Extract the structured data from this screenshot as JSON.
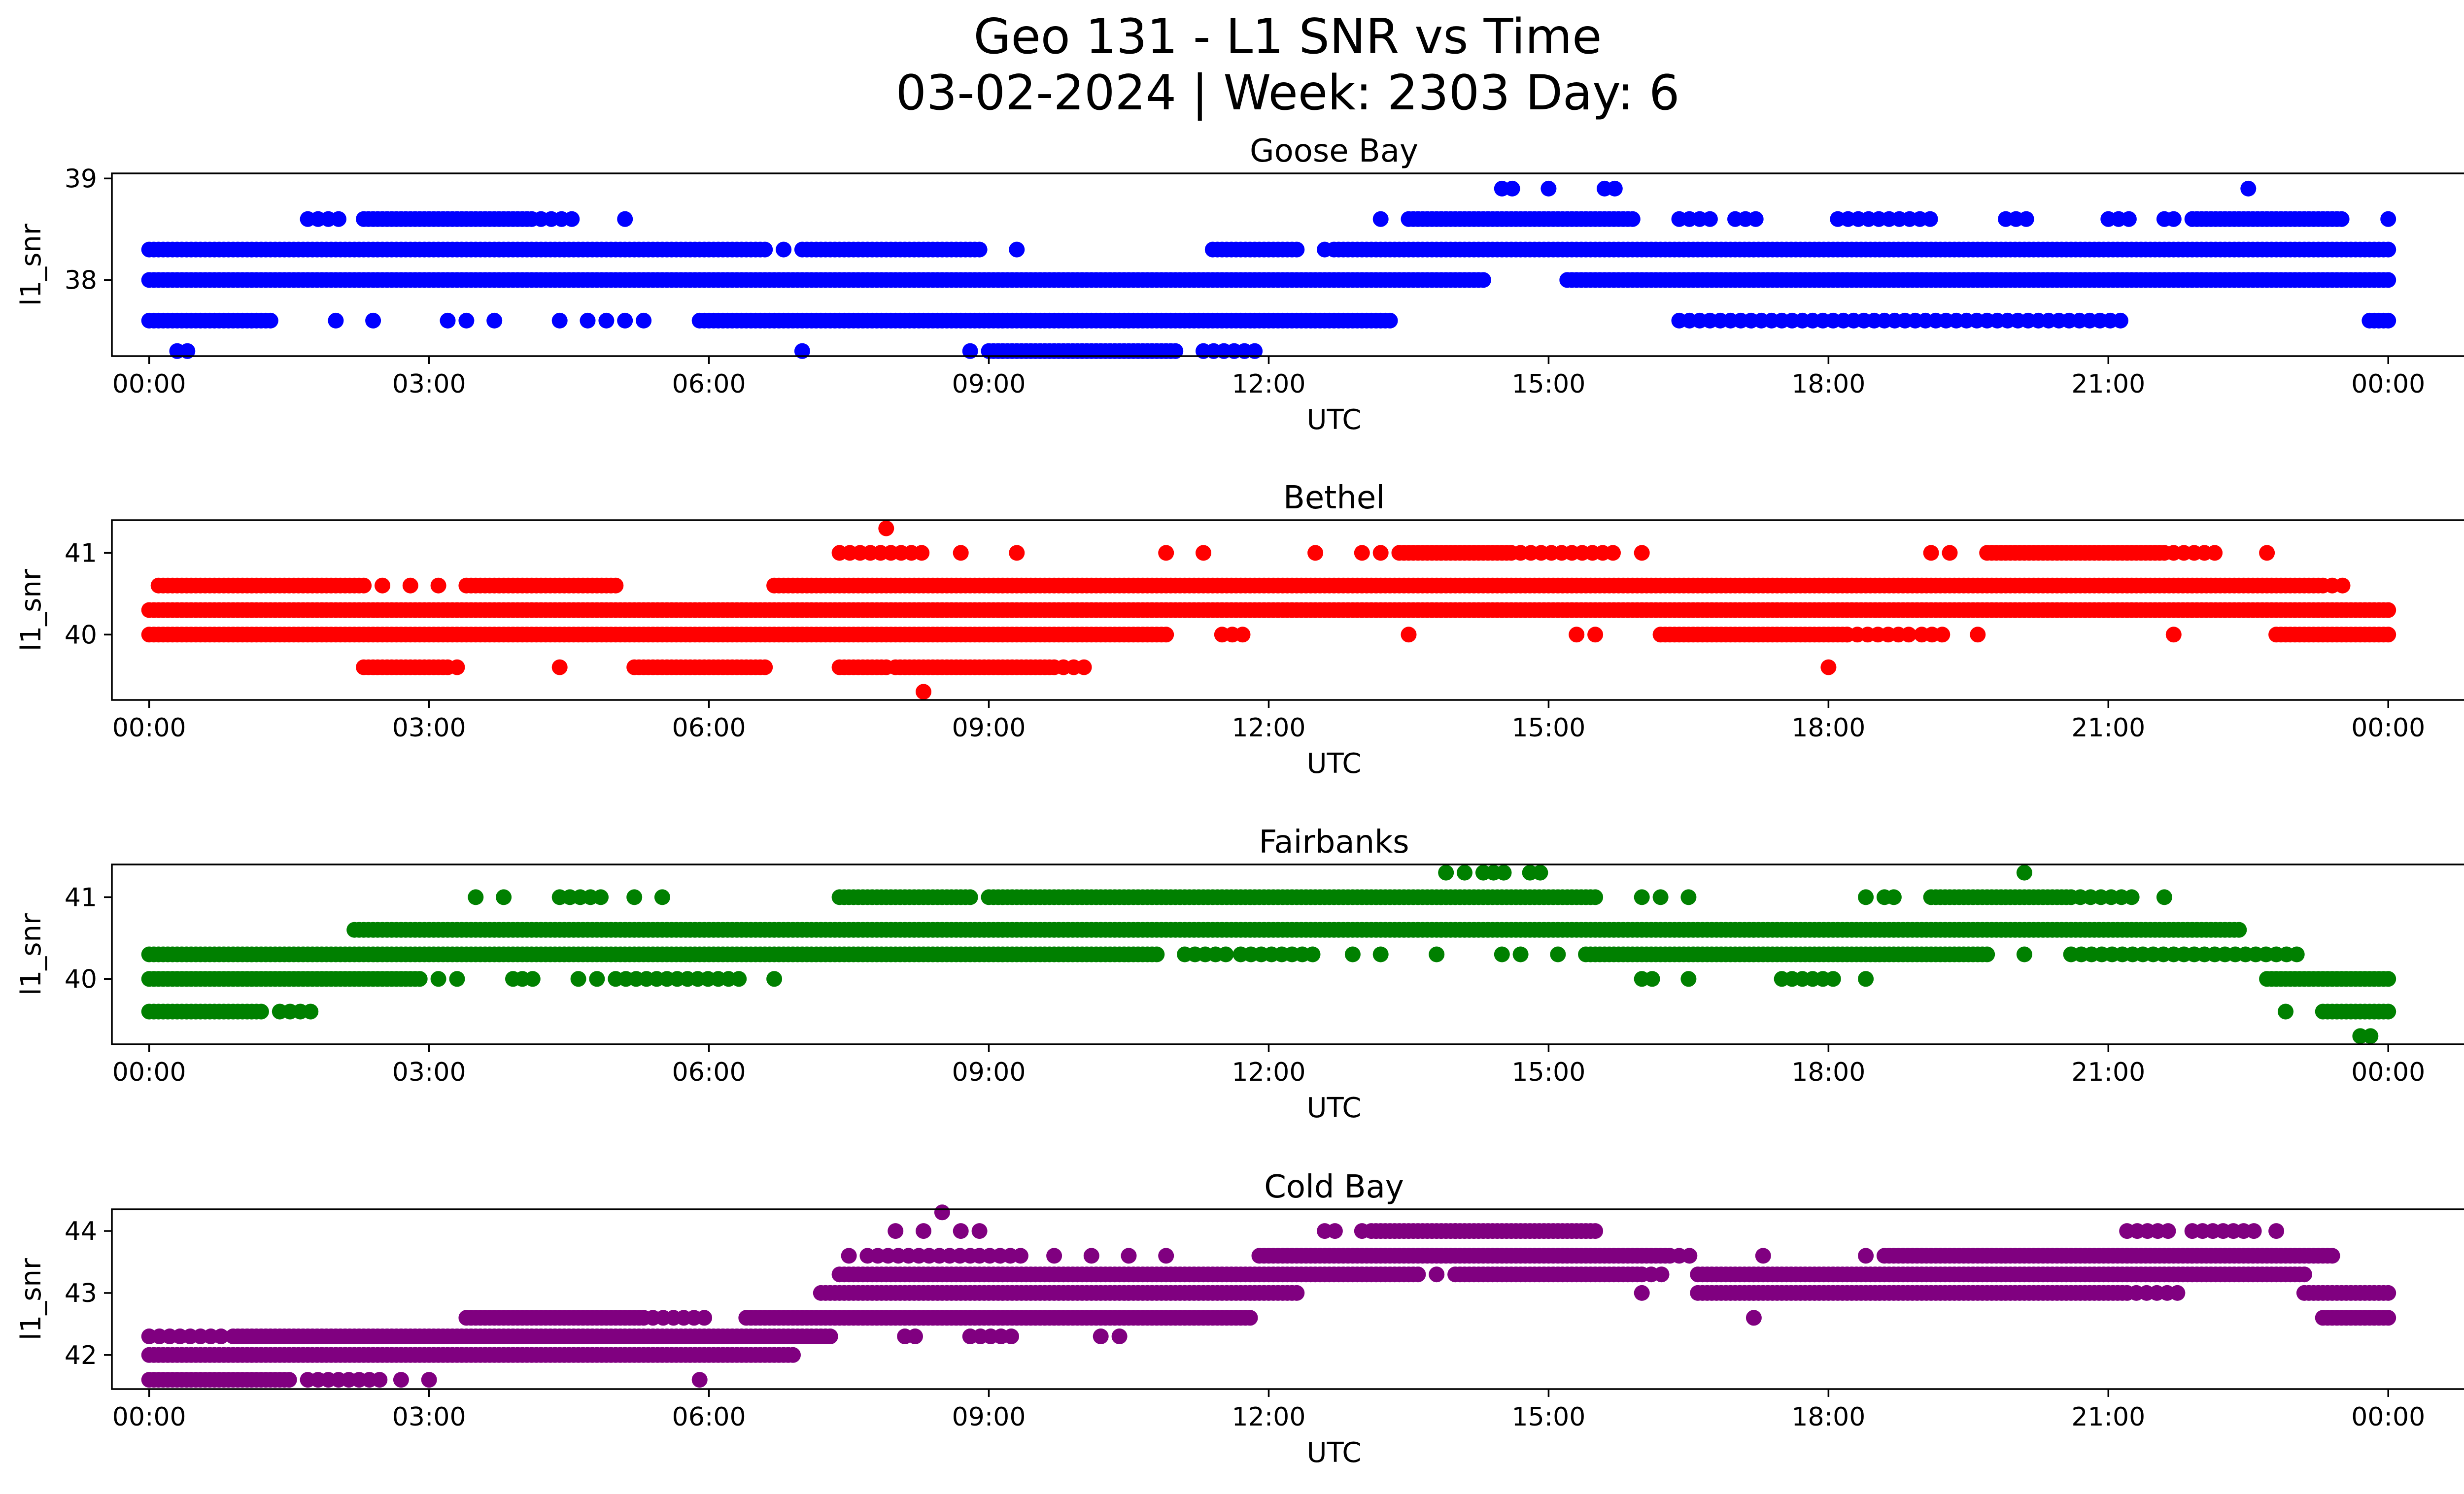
{
  "figure": {
    "title_line1": "Geo 131 - L1 SNR vs Time",
    "title_line2": "03-02-2024 | Week: 2303 Day: 6"
  },
  "chart_data": [
    {
      "type": "scatter",
      "title": "Goose Bay",
      "xlabel": "UTC",
      "ylabel": "l1_snr",
      "color": "#0000ff",
      "xlim_hours": [
        -0.4,
        25.8
      ],
      "ylim": [
        37.25,
        39.05
      ],
      "x_ticks": [
        "00:00",
        "03:00",
        "06:00",
        "09:00",
        "12:00",
        "15:00",
        "18:00",
        "21:00",
        "00:00"
      ],
      "y_ticks": [
        38,
        39
      ],
      "series": [
        {
          "y": 37.3,
          "segments": [
            [
              0.3,
              0.5,
              "sparse"
            ],
            [
              7.0,
              7.1,
              "sparse"
            ],
            [
              8.8,
              8.9,
              "sparse"
            ],
            [
              9.0,
              11.0,
              "dense"
            ],
            [
              11.3,
              11.9,
              "sparse"
            ]
          ],
          "points": []
        },
        {
          "y": 37.6,
          "segments": [
            [
              0.0,
              1.3,
              "dense"
            ],
            [
              5.9,
              13.3,
              "dense"
            ],
            [
              16.4,
              21.2,
              "sparse"
            ],
            [
              23.8,
              24.0,
              "dense"
            ]
          ],
          "points": [
            2.0,
            2.4,
            3.2,
            3.4,
            3.7,
            4.4,
            4.7,
            4.9,
            5.1,
            5.3
          ]
        },
        {
          "y": 38.0,
          "segments": [
            [
              0.0,
              14.3,
              "dense"
            ],
            [
              15.2,
              24.0,
              "dense"
            ]
          ],
          "points": []
        },
        {
          "y": 38.3,
          "segments": [
            [
              0.0,
              6.6,
              "dense"
            ],
            [
              7.0,
              8.9,
              "dense"
            ],
            [
              11.4,
              12.3,
              "dense"
            ],
            [
              12.7,
              24.0,
              "dense"
            ]
          ],
          "points": [
            6.8,
            9.3,
            12.6
          ]
        },
        {
          "y": 38.6,
          "segments": [
            [
              1.7,
              2.1,
              "sparse"
            ],
            [
              2.3,
              4.1,
              "dense"
            ],
            [
              4.2,
              4.6,
              "sparse"
            ],
            [
              13.5,
              15.9,
              "dense"
            ],
            [
              16.4,
              16.8,
              "sparse"
            ],
            [
              17.0,
              17.3,
              "sparse"
            ],
            [
              18.1,
              19.1,
              "sparse"
            ],
            [
              19.9,
              20.2,
              "sparse"
            ],
            [
              21.0,
              21.3,
              "sparse"
            ],
            [
              21.9,
              23.5,
              "dense"
            ]
          ],
          "points": [
            5.1,
            13.2,
            21.6,
            21.7,
            24.0
          ]
        },
        {
          "y": 38.9,
          "segments": [
            [
              14.5,
              14.7,
              "sparse"
            ],
            [
              15.6,
              15.8,
              "sparse"
            ]
          ],
          "points": [
            15.0,
            22.5
          ]
        }
      ]
    },
    {
      "type": "scatter",
      "title": "Bethel",
      "xlabel": "UTC",
      "ylabel": "l1_snr",
      "color": "#ff0000",
      "xlim_hours": [
        -0.4,
        25.8
      ],
      "ylim": [
        39.2,
        41.4
      ],
      "x_ticks": [
        "00:00",
        "03:00",
        "06:00",
        "09:00",
        "12:00",
        "15:00",
        "18:00",
        "21:00",
        "00:00"
      ],
      "y_ticks": [
        40,
        41
      ],
      "series": [
        {
          "y": 39.3,
          "segments": [],
          "points": [
            8.3
          ]
        },
        {
          "y": 39.6,
          "segments": [
            [
              2.3,
              3.2,
              "dense"
            ],
            [
              5.2,
              6.6,
              "dense"
            ],
            [
              7.4,
              7.9,
              "dense"
            ],
            [
              8.0,
              9.7,
              "dense"
            ],
            [
              9.8,
              10.1,
              "sparse"
            ]
          ],
          "points": [
            3.3,
            4.4,
            18.0
          ]
        },
        {
          "y": 40.0,
          "segments": [
            [
              0.0,
              10.9,
              "dense"
            ],
            [
              11.5,
              11.8,
              "sparse"
            ],
            [
              16.2,
              18.2,
              "dense"
            ],
            [
              18.2,
              18.9,
              "sparse"
            ],
            [
              19.0,
              19.3,
              "sparse"
            ],
            [
              22.8,
              24.0,
              "dense"
            ]
          ],
          "points": [
            13.5,
            15.3,
            15.5,
            19.6,
            21.7
          ]
        },
        {
          "y": 40.3,
          "segments": [
            [
              0.0,
              24.0,
              "dense"
            ]
          ],
          "points": []
        },
        {
          "y": 40.6,
          "segments": [
            [
              0.1,
              2.3,
              "dense"
            ],
            [
              3.4,
              5.0,
              "dense"
            ],
            [
              6.7,
              23.3,
              "dense"
            ],
            [
              23.4,
              23.6,
              "sparse"
            ]
          ],
          "points": [
            2.5,
            2.8,
            3.1
          ]
        },
        {
          "y": 41.0,
          "segments": [
            [
              7.4,
              8.3,
              "sparse"
            ],
            [
              13.4,
              14.6,
              "dense"
            ],
            [
              14.7,
              15.7,
              "sparse"
            ],
            [
              19.7,
              21.6,
              "dense"
            ],
            [
              21.7,
              22.2,
              "sparse"
            ]
          ],
          "points": [
            8.7,
            9.3,
            10.9,
            11.3,
            12.5,
            13.0,
            13.2,
            16.0,
            19.1,
            19.3,
            22.7
          ]
        },
        {
          "y": 41.3,
          "segments": [],
          "points": [
            7.9
          ]
        }
      ]
    },
    {
      "type": "scatter",
      "title": "Fairbanks",
      "xlabel": "UTC",
      "ylabel": "l1_snr",
      "color": "#008000",
      "xlim_hours": [
        -0.4,
        25.8
      ],
      "ylim": [
        39.2,
        41.4
      ],
      "x_ticks": [
        "00:00",
        "03:00",
        "06:00",
        "09:00",
        "12:00",
        "15:00",
        "18:00",
        "21:00",
        "00:00"
      ],
      "y_ticks": [
        40,
        41
      ],
      "series": [
        {
          "y": 39.3,
          "segments": [
            [
              23.7,
              23.9,
              "sparse"
            ]
          ],
          "points": []
        },
        {
          "y": 39.6,
          "segments": [
            [
              0.0,
              1.2,
              "dense"
            ],
            [
              1.4,
              1.8,
              "sparse"
            ],
            [
              23.3,
              24.0,
              "dense"
            ]
          ],
          "points": [
            22.9
          ]
        },
        {
          "y": 40.0,
          "segments": [
            [
              0.0,
              2.9,
              "dense"
            ],
            [
              4.0,
              4.2,
              "sparse"
            ],
            [
              5.0,
              6.4,
              "sparse"
            ],
            [
              16.0,
              16.2,
              "sparse"
            ],
            [
              17.5,
              18.1,
              "sparse"
            ],
            [
              22.7,
              24.0,
              "dense"
            ]
          ],
          "points": [
            3.1,
            3.3,
            3.9,
            4.6,
            4.8,
            6.7,
            16.5,
            18.4
          ]
        },
        {
          "y": 40.3,
          "segments": [
            [
              0.0,
              10.8,
              "dense"
            ],
            [
              11.1,
              11.6,
              "sparse"
            ],
            [
              11.7,
              12.5,
              "sparse"
            ],
            [
              15.4,
              19.7,
              "dense"
            ],
            [
              20.6,
              23.1,
              "sparse"
            ]
          ],
          "points": [
            12.9,
            13.2,
            13.8,
            14.5,
            14.7,
            15.1,
            20.1
          ]
        },
        {
          "y": 40.6,
          "segments": [
            [
              2.2,
              22.4,
              "dense"
            ]
          ],
          "points": []
        },
        {
          "y": 41.0,
          "segments": [
            [
              4.4,
              4.9,
              "sparse"
            ],
            [
              7.4,
              8.8,
              "dense"
            ],
            [
              9.0,
              15.5,
              "dense"
            ],
            [
              19.1,
              20.6,
              "dense"
            ],
            [
              20.7,
              21.3,
              "sparse"
            ]
          ],
          "points": [
            3.5,
            3.8,
            5.2,
            5.5,
            16.0,
            16.2,
            16.5,
            18.4,
            18.6,
            18.7,
            21.6
          ]
        },
        {
          "y": 41.3,
          "segments": [
            [
              14.3,
              14.6,
              "sparse"
            ],
            [
              14.8,
              15.0,
              "sparse"
            ]
          ],
          "points": [
            13.9,
            14.1,
            20.1
          ]
        }
      ]
    },
    {
      "type": "scatter",
      "title": "Cold Bay",
      "xlabel": "UTC",
      "ylabel": "l1_snr",
      "color": "#800080",
      "xlim_hours": [
        -0.4,
        25.8
      ],
      "ylim": [
        41.45,
        44.35
      ],
      "x_ticks": [
        "00:00",
        "03:00",
        "06:00",
        "09:00",
        "12:00",
        "15:00",
        "18:00",
        "21:00",
        "00:00"
      ],
      "y_ticks": [
        42,
        43,
        44
      ],
      "series": [
        {
          "y": 41.6,
          "segments": [
            [
              0.0,
              1.5,
              "dense"
            ],
            [
              1.7,
              2.5,
              "sparse"
            ]
          ],
          "points": [
            2.7,
            3.0,
            5.9
          ]
        },
        {
          "y": 42.0,
          "segments": [
            [
              0.0,
              6.9,
              "dense"
            ]
          ],
          "points": []
        },
        {
          "y": 42.3,
          "segments": [
            [
              0.0,
              0.8,
              "sparse"
            ],
            [
              0.9,
              7.3,
              "dense"
            ],
            [
              8.1,
              8.3,
              "sparse"
            ],
            [
              8.8,
              9.3,
              "sparse"
            ]
          ],
          "points": [
            10.2,
            10.4
          ]
        },
        {
          "y": 42.6,
          "segments": [
            [
              3.4,
              5.3,
              "dense"
            ],
            [
              5.4,
              6.0,
              "sparse"
            ],
            [
              6.4,
              11.8,
              "dense"
            ],
            [
              17.2,
              17.3,
              "sparse"
            ],
            [
              23.3,
              24.0,
              "dense"
            ]
          ],
          "points": []
        },
        {
          "y": 43.0,
          "segments": [
            [
              7.2,
              12.3,
              "dense"
            ],
            [
              16.6,
              21.2,
              "dense"
            ],
            [
              21.3,
              21.8,
              "sparse"
            ],
            [
              23.1,
              24.0,
              "dense"
            ]
          ],
          "points": [
            16.0
          ]
        },
        {
          "y": 43.3,
          "segments": [
            [
              7.4,
              13.6,
              "dense"
            ],
            [
              14.0,
              16.0,
              "dense"
            ],
            [
              16.1,
              16.3,
              "sparse"
            ],
            [
              16.6,
              23.1,
              "dense"
            ]
          ],
          "points": [
            13.8
          ]
        },
        {
          "y": 43.6,
          "segments": [
            [
              7.7,
              8.8,
              "sparse"
            ],
            [
              8.9,
              9.4,
              "sparse"
            ],
            [
              11.9,
              16.3,
              "dense"
            ],
            [
              16.4,
              16.6,
              "sparse"
            ],
            [
              18.6,
              23.4,
              "dense"
            ]
          ],
          "points": [
            7.5,
            9.7,
            10.1,
            10.5,
            10.9,
            17.3,
            18.4
          ]
        },
        {
          "y": 44.0,
          "segments": [
            [
              12.6,
              12.8,
              "sparse"
            ],
            [
              13.1,
              14.0,
              "dense"
            ],
            [
              14.0,
              15.5,
              "dense"
            ],
            [
              21.2,
              21.7,
              "sparse"
            ],
            [
              21.9,
              22.6,
              "sparse"
            ]
          ],
          "points": [
            8.0,
            8.3,
            8.7,
            8.9,
            13.0,
            22.8
          ]
        },
        {
          "y": 44.3,
          "segments": [],
          "points": [
            8.5
          ]
        }
      ]
    }
  ]
}
